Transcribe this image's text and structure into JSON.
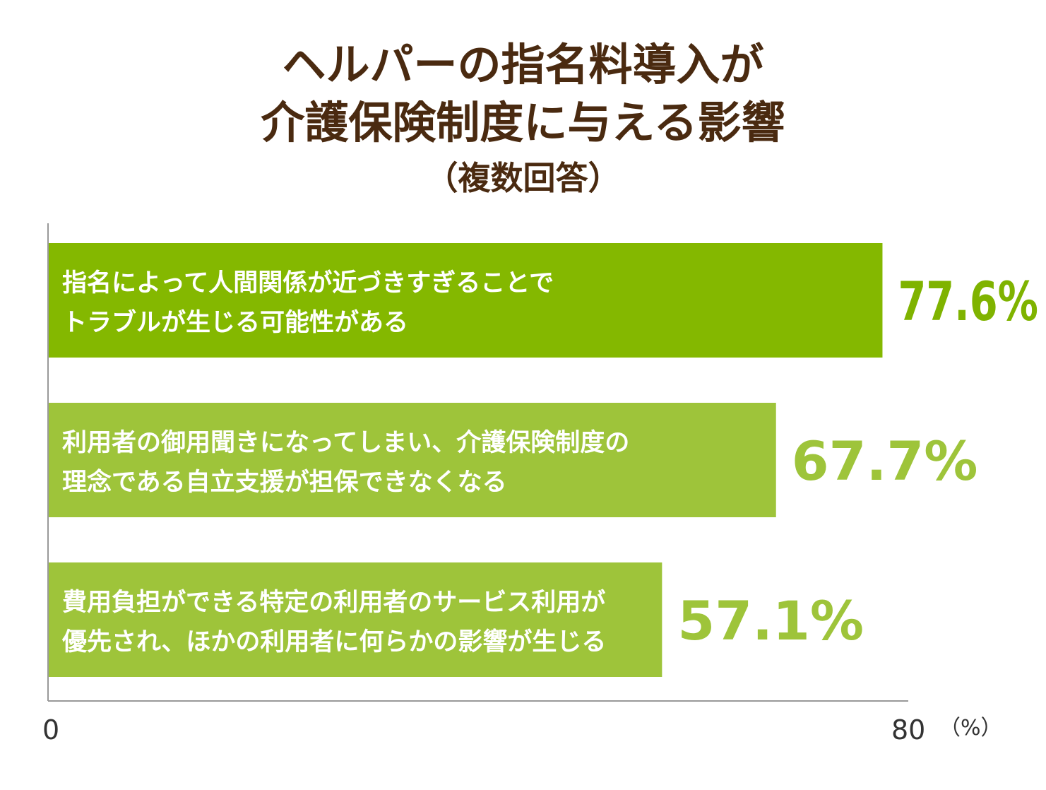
{
  "chart_data": {
    "type": "bar",
    "orientation": "horizontal",
    "title_lines": [
      "ヘルパーの指名料導入が",
      "介護保険制度に与える影響",
      "（複数回答）"
    ],
    "categories": [
      [
        "指名によって人間関係が近づきすぎることで",
        "トラブルが生じる可能性がある"
      ],
      [
        "利用者の御用聞きになってしまい、介護保険制度の",
        "理念である自立支援が担保できなくなる"
      ],
      [
        "費用負担ができる特定の利用者のサービス利用が",
        "優先され、ほかの利用者に何らかの影響が生じる"
      ]
    ],
    "values": [
      77.6,
      67.7,
      57.1
    ],
    "value_labels": [
      "77.6%",
      "67.7%",
      "57.1%"
    ],
    "xlim": [
      0,
      80
    ],
    "tick_labels": [
      "0",
      "80"
    ],
    "unit_label": "（%）",
    "grid": false,
    "legend": "none",
    "colors": {
      "title": "#4a2a10",
      "bar_first": "#84b800",
      "bar_other": "#9ec43a",
      "value_first": "#7fb300",
      "value_other": "#9ec43a",
      "axis": "#999999"
    }
  }
}
